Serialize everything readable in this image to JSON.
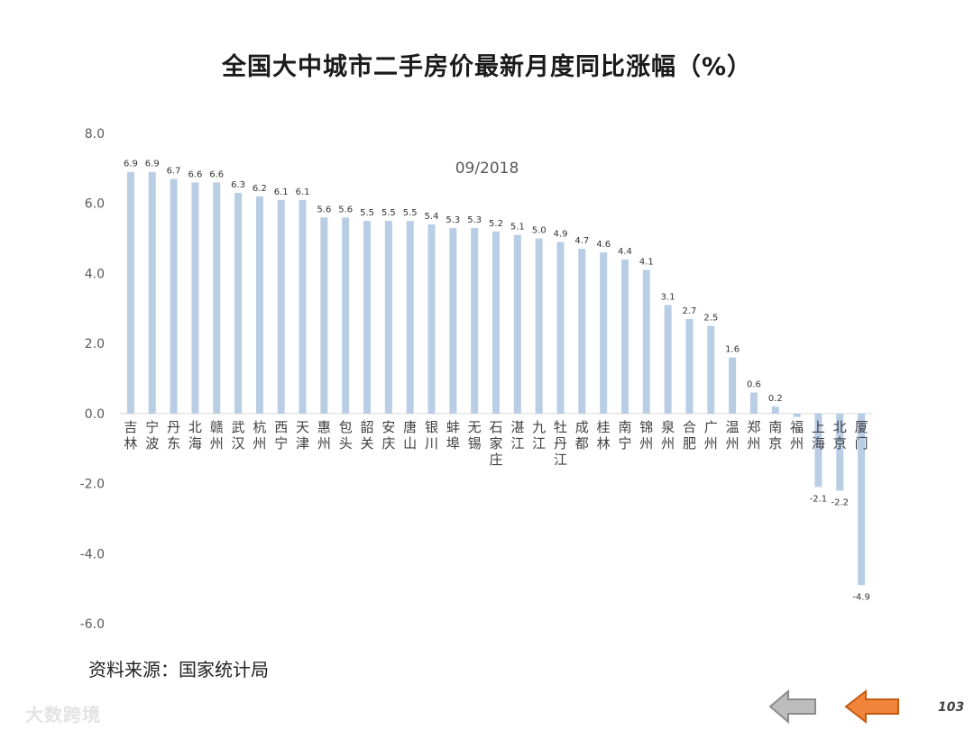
{
  "title": "全国大中城市二手房价最新月度同比涨幅（%）",
  "source": "资料来源：国家统计局",
  "watermark": "大数跨境",
  "page_number": "103",
  "nav": {
    "prev_icon": "arrow-left-gray-icon",
    "next_icon": "arrow-left-orange-icon"
  },
  "colors": {
    "bar": "#b9cde5",
    "axis_text": "#595959",
    "axis_line": "#d9d9d9",
    "prev_arrow": "#a6a6a6",
    "next_arrow": "#f0843a"
  },
  "chart_data": {
    "type": "bar",
    "title": "全国大中城市二手房价最新月度同比涨幅（%）",
    "annotation": "09/2018",
    "categories": [
      "吉林",
      "宁波",
      "丹东",
      "北海",
      "赣州",
      "武汉",
      "杭州",
      "西宁",
      "天津",
      "惠州",
      "包头",
      "韶关",
      "安庆",
      "唐山",
      "银川",
      "蚌埠",
      "无锡",
      "石家庄",
      "湛江",
      "九江",
      "牡丹江",
      "成都",
      "桂林",
      "南宁",
      "锦州",
      "泉州",
      "合肥",
      "广州",
      "温州",
      "郑州",
      "南京",
      "福州",
      "上海",
      "北京",
      "厦门"
    ],
    "values": [
      6.9,
      6.9,
      6.7,
      6.6,
      6.6,
      6.3,
      6.2,
      6.1,
      6.1,
      5.6,
      5.6,
      5.5,
      5.5,
      5.5,
      5.4,
      5.3,
      5.3,
      5.2,
      5.1,
      5.0,
      4.9,
      4.7,
      4.6,
      4.4,
      4.1,
      3.1,
      2.7,
      2.5,
      1.6,
      0.6,
      0.2,
      -0.1,
      -2.1,
      -2.2,
      -4.9
    ],
    "data_labels": [
      "6.9",
      "6.9",
      "6.7",
      "6.6",
      "6.6",
      "6.3",
      "6.2",
      "6.1",
      "6.1",
      "5.6",
      "5.6",
      "5.5",
      "5.5",
      "5.5",
      "5.4",
      "5.3",
      "5.3",
      "5.2",
      "5.1",
      "5.0",
      "4.9",
      "4.7",
      "4.6",
      "4.4",
      "4.1",
      "3.1",
      "2.7",
      "2.5",
      "1.6",
      "0.6",
      "0.2",
      "",
      "-2.1",
      "-2.2",
      "-4.9"
    ],
    "yticks": [
      "8.0",
      "6.0",
      "4.0",
      "2.0",
      "0.0",
      "-2.0",
      "-4.0",
      "-6.0"
    ],
    "ylim": [
      -6,
      8
    ],
    "xlabel": "",
    "ylabel": "",
    "grid": false,
    "legend": "none"
  }
}
